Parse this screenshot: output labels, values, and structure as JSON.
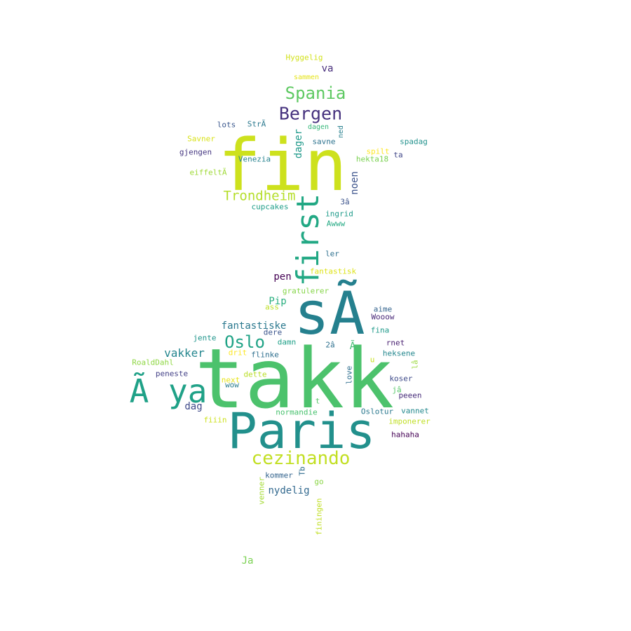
{
  "words": [
    {
      "text": "takk",
      "color": "#4cc26c"
    },
    {
      "text": "sÃ",
      "color": "#25808e"
    },
    {
      "text": "fin",
      "color": "#cde11d"
    },
    {
      "text": "Paris",
      "color": "#22908c"
    },
    {
      "text": "Ã ya",
      "color": "#1fa187"
    },
    {
      "text": "first",
      "color": "#22a884"
    },
    {
      "text": "cezinando",
      "color": "#c2df23"
    },
    {
      "text": "Bergen",
      "color": "#46327e"
    },
    {
      "text": "Spania",
      "color": "#5ec962"
    },
    {
      "text": "Oslo",
      "color": "#20a386"
    },
    {
      "text": "Trondheim",
      "color": "#b5de2b"
    },
    {
      "text": "vakker",
      "color": "#24868e"
    },
    {
      "text": "fantastiske",
      "color": "#2a788e"
    },
    {
      "text": "nydelig",
      "color": "#31688e"
    },
    {
      "text": "noen",
      "color": "#3b528b"
    },
    {
      "text": "dager",
      "color": "#1f998a"
    },
    {
      "text": "Pip",
      "color": "#29af7f"
    },
    {
      "text": "pen",
      "color": "#440154"
    },
    {
      "text": "dag",
      "color": "#3e4989"
    },
    {
      "text": "va",
      "color": "#472d7b"
    },
    {
      "text": "Ja",
      "color": "#7ad151"
    },
    {
      "text": "Hyggelig",
      "color": "#d2e21b"
    },
    {
      "text": "sammen",
      "color": "#e5e419"
    },
    {
      "text": "lots",
      "color": "#39568c"
    },
    {
      "text": "StrÃ",
      "color": "#2a788e"
    },
    {
      "text": "dagen",
      "color": "#35b779"
    },
    {
      "text": "ned",
      "color": "#277f8e"
    },
    {
      "text": "Savner",
      "color": "#d8e219"
    },
    {
      "text": "spadag",
      "color": "#21918c"
    },
    {
      "text": "savne",
      "color": "#2c728e"
    },
    {
      "text": "spilt",
      "color": "#fde725"
    },
    {
      "text": "ta",
      "color": "#404688"
    },
    {
      "text": "gjengen",
      "color": "#453781"
    },
    {
      "text": "Venezia",
      "color": "#26828e"
    },
    {
      "text": "hekta18",
      "color": "#7ad151"
    },
    {
      "text": "eiffeltÃ",
      "color": "#a0da39"
    },
    {
      "text": "cupcakes",
      "color": "#1f9e89"
    },
    {
      "text": "3â",
      "color": "#3b528b"
    },
    {
      "text": "ingrid",
      "color": "#1e9b8a"
    },
    {
      "text": "Awww",
      "color": "#23a983"
    },
    {
      "text": "ler",
      "color": "#2d708e"
    },
    {
      "text": "fantastisk",
      "color": "#dde318"
    },
    {
      "text": "gratulerer",
      "color": "#86d549"
    },
    {
      "text": "ass",
      "color": "#bddf26"
    },
    {
      "text": "aime",
      "color": "#33638d"
    },
    {
      "text": "Wooow",
      "color": "#482878"
    },
    {
      "text": "fina",
      "color": "#1f9a8a"
    },
    {
      "text": "dere",
      "color": "#3a548c"
    },
    {
      "text": "jente",
      "color": "#1f958b"
    },
    {
      "text": "damn",
      "color": "#1fa088"
    },
    {
      "text": "2â",
      "color": "#2d708e"
    },
    {
      "text": "Ã",
      "color": "#42be71"
    },
    {
      "text": "rnet",
      "color": "#481f70"
    },
    {
      "text": "drit",
      "color": "#fde725"
    },
    {
      "text": "flinke",
      "color": "#2e6f8e"
    },
    {
      "text": "heksene",
      "color": "#24878e"
    },
    {
      "text": "RoaldDahl",
      "color": "#8fd744"
    },
    {
      "text": "u",
      "color": "#c8e020"
    },
    {
      "text": "lâ",
      "color": "#9bd93c"
    },
    {
      "text": "peneste",
      "color": "#424086"
    },
    {
      "text": "next",
      "color": "#e7e419"
    },
    {
      "text": "dette",
      "color": "#bade28"
    },
    {
      "text": "wow",
      "color": "#287c8e"
    },
    {
      "text": "love",
      "color": "#2e6e8e"
    },
    {
      "text": "koser",
      "color": "#3e4a89"
    },
    {
      "text": "jâ",
      "color": "#55c667"
    },
    {
      "text": "peeen",
      "color": "#472c7a"
    },
    {
      "text": "t",
      "color": "#56c667"
    },
    {
      "text": "normandie",
      "color": "#48c16e"
    },
    {
      "text": "Oslotur",
      "color": "#2a788e"
    },
    {
      "text": "vannet",
      "color": "#23898e"
    },
    {
      "text": "fiiin",
      "color": "#cde11d"
    },
    {
      "text": "imponerer",
      "color": "#c0df25"
    },
    {
      "text": "hahaha",
      "color": "#440154"
    },
    {
      "text": "Tb",
      "color": "#2f6c8e"
    },
    {
      "text": "kommer",
      "color": "#33638d"
    },
    {
      "text": "go",
      "color": "#8bd646"
    },
    {
      "text": "venner",
      "color": "#a5db36"
    },
    {
      "text": "finingen",
      "color": "#c0df25"
    }
  ]
}
